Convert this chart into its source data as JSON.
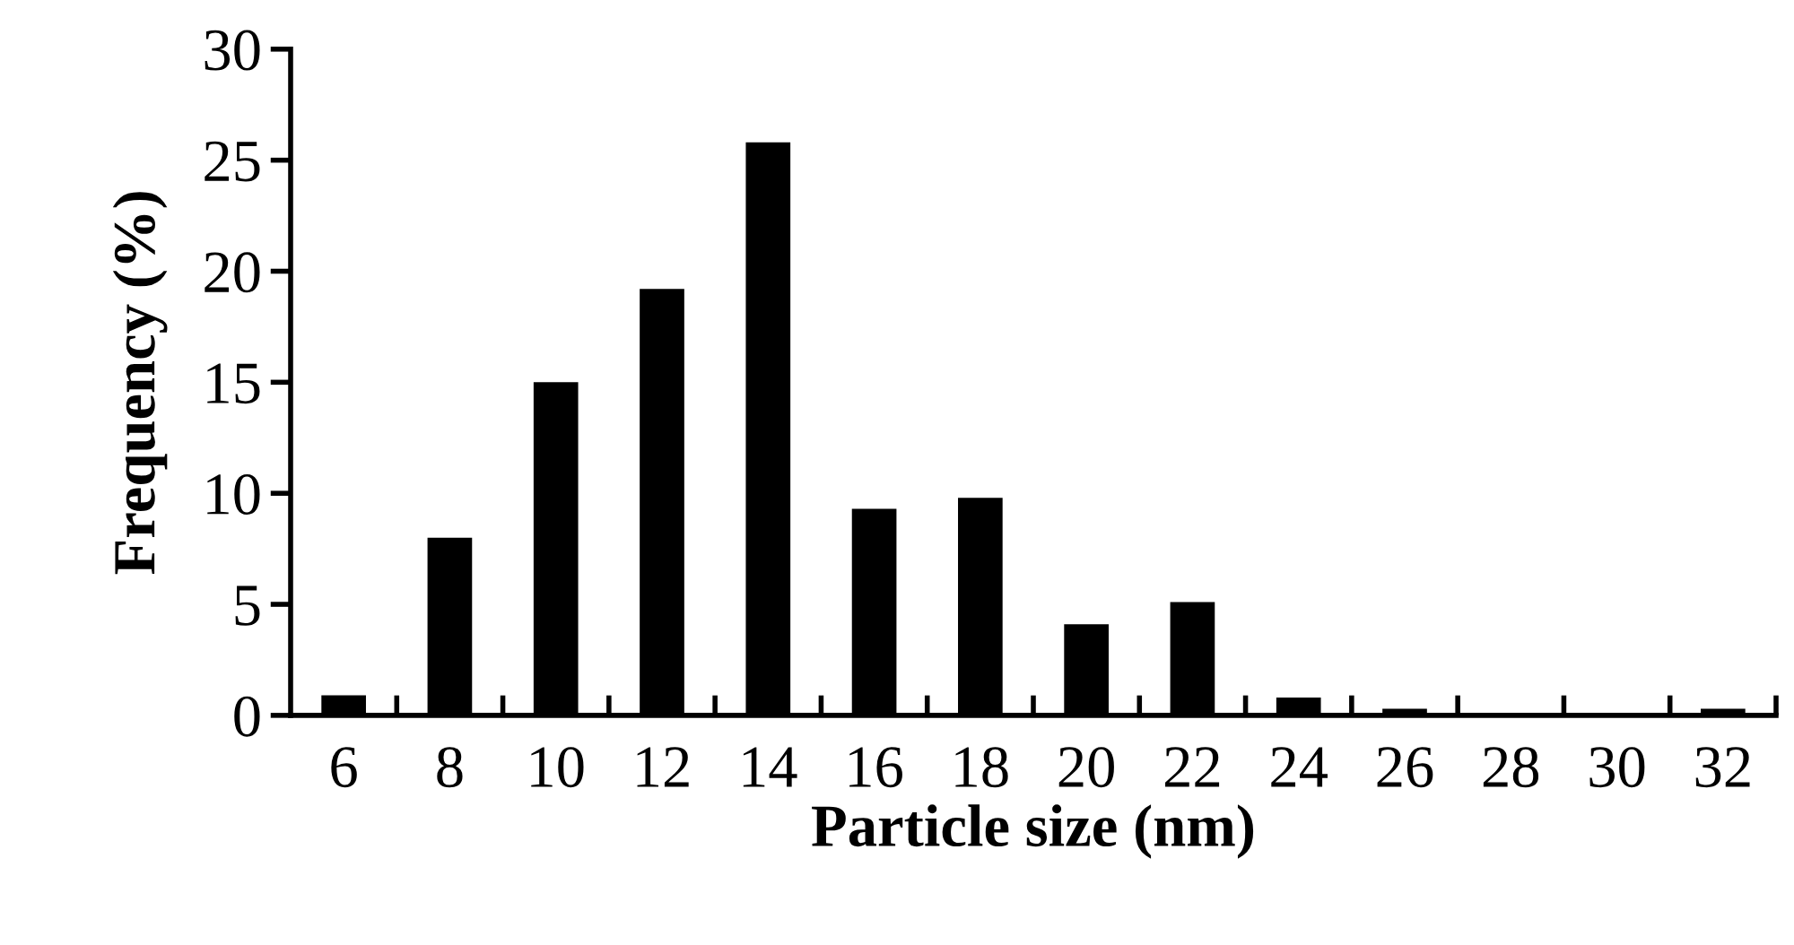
{
  "chart_data": {
    "type": "bar",
    "xlabel": "Particle size (nm)",
    "ylabel": "Frequency (%)",
    "categories": [
      "6",
      "8",
      "10",
      "12",
      "14",
      "16",
      "18",
      "20",
      "22",
      "24",
      "26",
      "28",
      "30",
      "32"
    ],
    "values": [
      0.9,
      8,
      15,
      19.2,
      25.8,
      9.3,
      9.8,
      4.1,
      5.1,
      0.8,
      0.3,
      0,
      0,
      0.3
    ],
    "color": "#000000",
    "ylim": [
      0,
      30
    ],
    "yticks": [
      0,
      5,
      10,
      15,
      20,
      25,
      30
    ],
    "grid": false
  }
}
